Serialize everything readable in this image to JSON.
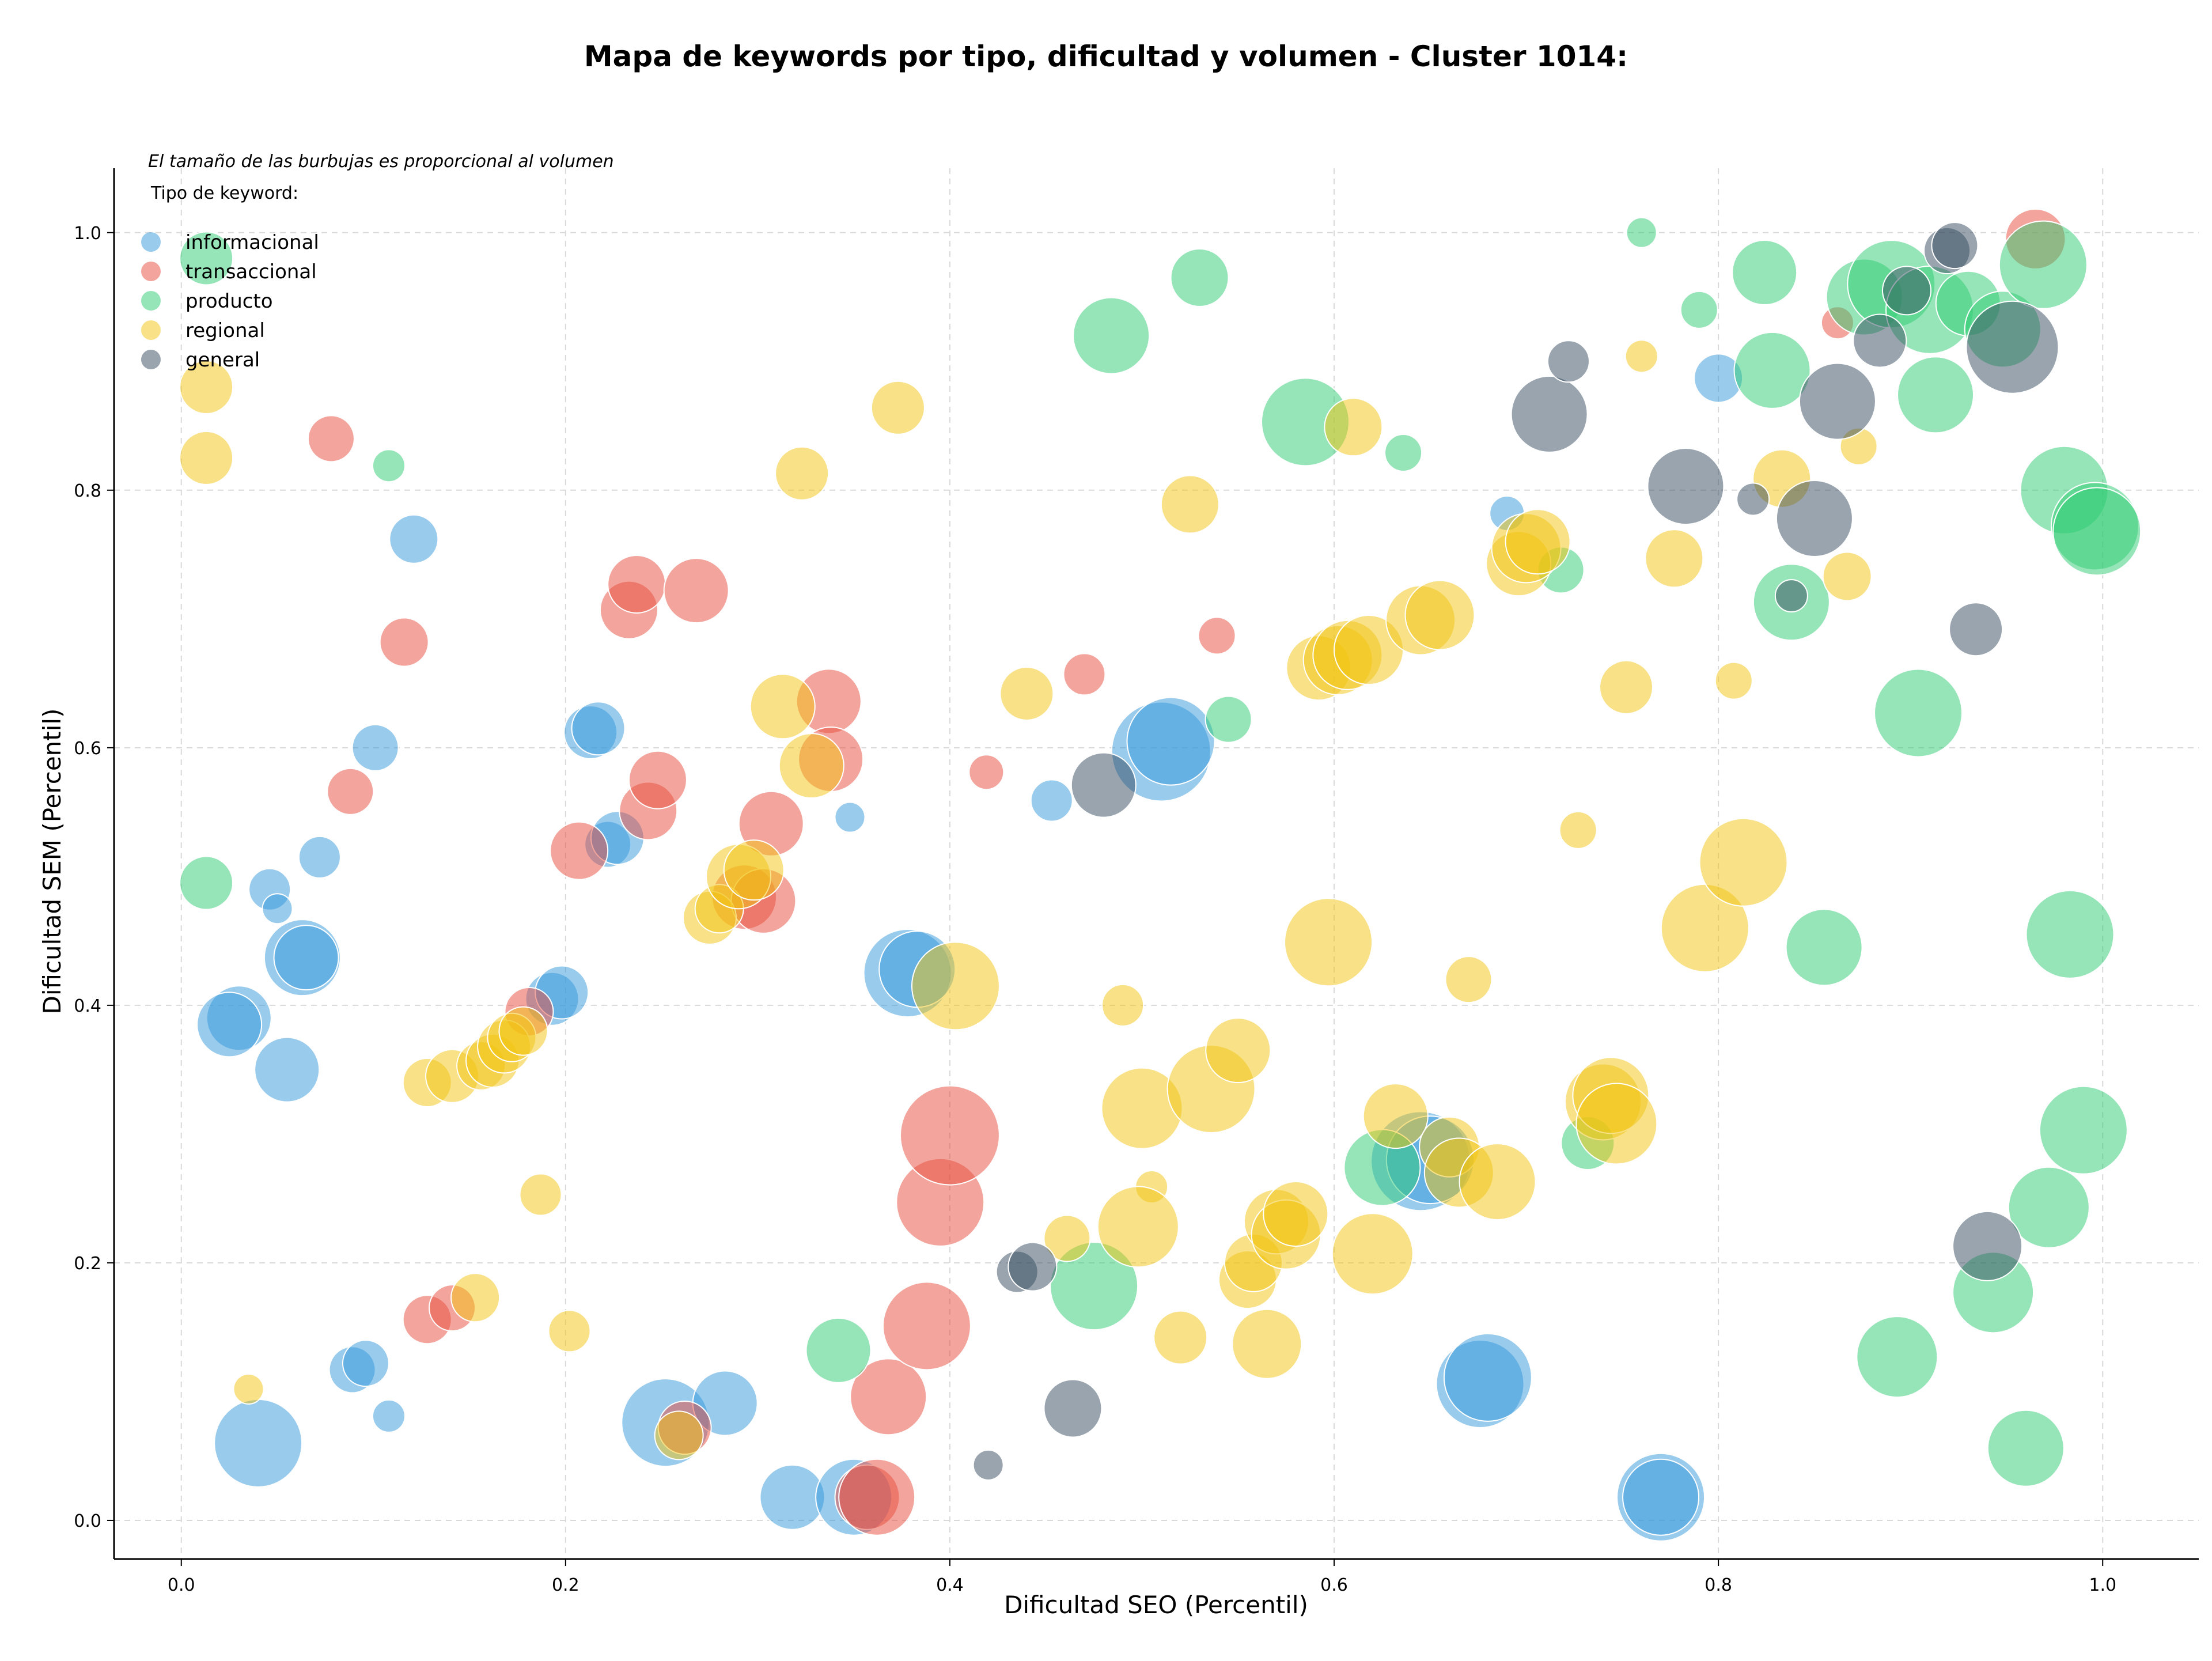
{
  "chart_data": {
    "type": "scatter",
    "title": "Mapa de keywords por tipo, dificultad y volumen - Cluster 1014:",
    "xlabel": "Dificultad SEO (Percentil)",
    "ylabel": "Dificultad SEM (Percentil)",
    "note": "El tamaño de las burbujas es proporcional al volumen",
    "legend_title": "Tipo de keyword:",
    "legend_position": "top-left",
    "grid": true,
    "xlim": [
      -0.035,
      1.05
    ],
    "ylim": [
      -0.03,
      1.05
    ],
    "xticks": [
      "0.0",
      "0.2",
      "0.4",
      "0.6",
      "0.8",
      "1.0"
    ],
    "yticks": [
      "0.0",
      "0.2",
      "0.4",
      "0.6",
      "0.8",
      "1.0"
    ],
    "series": [
      {
        "name": "informacional",
        "color": "#3498db",
        "points": [
          [
            0.04,
            0.06,
            3
          ],
          [
            0.03,
            0.39,
            2
          ],
          [
            0.025,
            0.385,
            2
          ],
          [
            0.055,
            0.35,
            2
          ],
          [
            0.063,
            0.437,
            2.5
          ],
          [
            0.065,
            0.437,
            2
          ],
          [
            0.046,
            0.49,
            1
          ],
          [
            0.05,
            0.475,
            0.5
          ],
          [
            0.072,
            0.515,
            1
          ],
          [
            0.101,
            0.6,
            1.2
          ],
          [
            0.121,
            0.762,
            1.3
          ],
          [
            0.089,
            0.117,
            1.2
          ],
          [
            0.096,
            0.122,
            1.2
          ],
          [
            0.108,
            0.081,
            0.6
          ],
          [
            0.193,
            0.405,
            1.5
          ],
          [
            0.198,
            0.41,
            1.5
          ],
          [
            0.213,
            0.612,
            1.5
          ],
          [
            0.217,
            0.615,
            1.5
          ],
          [
            0.222,
            0.525,
            1.2
          ],
          [
            0.227,
            0.53,
            1.5
          ],
          [
            0.252,
            0.076,
            3
          ],
          [
            0.283,
            0.091,
            2
          ],
          [
            0.318,
            0.018,
            2
          ],
          [
            0.35,
            0.018,
            2.5
          ],
          [
            0.348,
            0.546,
            0.5
          ],
          [
            0.378,
            0.425,
            3
          ],
          [
            0.383,
            0.428,
            2.5
          ],
          [
            0.453,
            0.559,
            1
          ],
          [
            0.51,
            0.597,
            3.5
          ],
          [
            0.515,
            0.605,
            3
          ],
          [
            0.645,
            0.279,
            3.5
          ],
          [
            0.65,
            0.28,
            3
          ],
          [
            0.676,
            0.106,
            3
          ],
          [
            0.68,
            0.111,
            3
          ],
          [
            0.69,
            0.782,
            0.7
          ],
          [
            0.8,
            0.887,
            1.3
          ],
          [
            0.77,
            0.018,
            3
          ],
          [
            0.77,
            0.018,
            2.5
          ]
        ]
      },
      {
        "name": "transaccional",
        "color": "#e74c3c",
        "points": [
          [
            0.078,
            0.84,
            1.2
          ],
          [
            0.088,
            0.566,
            1.2
          ],
          [
            0.116,
            0.682,
            1.3
          ],
          [
            0.128,
            0.156,
            1.3
          ],
          [
            0.141,
            0.165,
            1.2
          ],
          [
            0.181,
            0.395,
            1.3
          ],
          [
            0.207,
            0.52,
            1.7
          ],
          [
            0.233,
            0.707,
            1.7
          ],
          [
            0.237,
            0.727,
            1.7
          ],
          [
            0.243,
            0.551,
            1.7
          ],
          [
            0.248,
            0.575,
            1.7
          ],
          [
            0.268,
            0.722,
            2
          ],
          [
            0.262,
            0.072,
            1.5
          ],
          [
            0.293,
            0.484,
            2
          ],
          [
            0.303,
            0.481,
            2
          ],
          [
            0.307,
            0.541,
            2
          ],
          [
            0.337,
            0.636,
            2
          ],
          [
            0.338,
            0.591,
            2
          ],
          [
            0.357,
            0.018,
            2
          ],
          [
            0.362,
            0.018,
            2.5
          ],
          [
            0.368,
            0.096,
            2.5
          ],
          [
            0.388,
            0.151,
            3
          ],
          [
            0.395,
            0.247,
            3
          ],
          [
            0.4,
            0.299,
            3.5
          ],
          [
            0.419,
            0.581,
            0.7
          ],
          [
            0.47,
            0.657,
            1
          ],
          [
            0.539,
            0.687,
            0.8
          ],
          [
            0.862,
            0.93,
            0.6
          ],
          [
            0.965,
            0.995,
            1.8
          ]
        ]
      },
      {
        "name": "producto",
        "color": "#2ecc71",
        "points": [
          [
            0.013,
            0.495,
            1.5
          ],
          [
            0.013,
            0.98,
            1.5
          ],
          [
            0.108,
            0.819,
            0.6
          ],
          [
            0.342,
            0.132,
            2
          ],
          [
            0.475,
            0.182,
            3
          ],
          [
            0.484,
            0.92,
            2.5
          ],
          [
            0.53,
            0.965,
            1.7
          ],
          [
            0.545,
            0.622,
            1.2
          ],
          [
            0.585,
            0.853,
            3
          ],
          [
            0.636,
            0.829,
            0.8
          ],
          [
            0.625,
            0.274,
            2.5
          ],
          [
            0.718,
            0.738,
            1.2
          ],
          [
            0.732,
            0.293,
            1.5
          ],
          [
            0.76,
            1.0,
            0.5
          ],
          [
            0.79,
            0.94,
            0.8
          ],
          [
            0.824,
            0.969,
            2
          ],
          [
            0.828,
            0.893,
            2.5
          ],
          [
            0.838,
            0.713,
            2.5
          ],
          [
            0.855,
            0.445,
            2.5
          ],
          [
            0.876,
            0.95,
            2.5
          ],
          [
            0.89,
            0.96,
            3
          ],
          [
            0.893,
            0.127,
            2.7
          ],
          [
            0.904,
            0.627,
            3
          ],
          [
            0.91,
            0.94,
            3
          ],
          [
            0.913,
            0.874,
            2.5
          ],
          [
            0.93,
            0.945,
            2
          ],
          [
            0.943,
            0.177,
            2.7
          ],
          [
            0.948,
            0.925,
            2.5
          ],
          [
            0.96,
            0.056,
            2.5
          ],
          [
            0.969,
            0.975,
            3
          ],
          [
            0.972,
            0.243,
            2.7
          ],
          [
            0.98,
            0.8,
            3
          ],
          [
            0.983,
            0.455,
            3
          ],
          [
            0.99,
            0.303,
            3
          ],
          [
            0.996,
            0.772,
            3
          ],
          [
            0.997,
            0.768,
            3
          ]
        ]
      },
      {
        "name": "regional",
        "color": "#f1c40f",
        "points": [
          [
            0.013,
            0.88,
            1.5
          ],
          [
            0.013,
            0.825,
            1.5
          ],
          [
            0.035,
            0.102,
            0.5
          ],
          [
            0.128,
            0.34,
            1.3
          ],
          [
            0.141,
            0.345,
            1.5
          ],
          [
            0.153,
            0.173,
            1.3
          ],
          [
            0.156,
            0.353,
            1.3
          ],
          [
            0.162,
            0.357,
            1.5
          ],
          [
            0.168,
            0.368,
            1.5
          ],
          [
            0.172,
            0.375,
            1.3
          ],
          [
            0.178,
            0.38,
            1.3
          ],
          [
            0.187,
            0.253,
            1
          ],
          [
            0.202,
            0.147,
            1
          ],
          [
            0.259,
            0.066,
            1.3
          ],
          [
            0.275,
            0.468,
            1.5
          ],
          [
            0.28,
            0.475,
            1.3
          ],
          [
            0.29,
            0.5,
            2
          ],
          [
            0.298,
            0.505,
            1.8
          ],
          [
            0.313,
            0.632,
            2
          ],
          [
            0.323,
            0.813,
            1.5
          ],
          [
            0.328,
            0.586,
            2
          ],
          [
            0.373,
            0.864,
            1.5
          ],
          [
            0.403,
            0.415,
            3
          ],
          [
            0.44,
            0.642,
            1.5
          ],
          [
            0.461,
            0.219,
            1.2
          ],
          [
            0.49,
            0.4,
            1
          ],
          [
            0.5,
            0.32,
            2.7
          ],
          [
            0.505,
            0.259,
            0.6
          ],
          [
            0.498,
            0.228,
            2.7
          ],
          [
            0.52,
            0.142,
            1.5
          ],
          [
            0.525,
            0.789,
            1.7
          ],
          [
            0.536,
            0.335,
            3
          ],
          [
            0.55,
            0.365,
            2
          ],
          [
            0.555,
            0.187,
            1.7
          ],
          [
            0.558,
            0.2,
            1.7
          ],
          [
            0.565,
            0.137,
            2.2
          ],
          [
            0.57,
            0.232,
            2
          ],
          [
            0.575,
            0.222,
            2.2
          ],
          [
            0.58,
            0.238,
            2
          ],
          [
            0.597,
            0.449,
            3
          ],
          [
            0.592,
            0.662,
            2
          ],
          [
            0.602,
            0.668,
            2.2
          ],
          [
            0.607,
            0.672,
            2.2
          ],
          [
            0.61,
            0.849,
            1.7
          ],
          [
            0.618,
            0.676,
            2.2
          ],
          [
            0.62,
            0.207,
            2.7
          ],
          [
            0.632,
            0.314,
            2
          ],
          [
            0.645,
            0.699,
            2.2
          ],
          [
            0.655,
            0.703,
            2.2
          ],
          [
            0.66,
            0.29,
            1.8
          ],
          [
            0.665,
            0.27,
            2.2
          ],
          [
            0.67,
            0.42,
            1.2
          ],
          [
            0.685,
            0.263,
            2.5
          ],
          [
            0.696,
            0.743,
            2
          ],
          [
            0.7,
            0.755,
            2.2
          ],
          [
            0.706,
            0.76,
            2
          ],
          [
            0.727,
            0.536,
            0.8
          ],
          [
            0.74,
            0.325,
            2.5
          ],
          [
            0.744,
            0.33,
            2.5
          ],
          [
            0.747,
            0.308,
            2.7
          ],
          [
            0.752,
            0.647,
            1.5
          ],
          [
            0.76,
            0.904,
            0.6
          ],
          [
            0.777,
            0.747,
            1.7
          ],
          [
            0.793,
            0.46,
            3
          ],
          [
            0.808,
            0.652,
            0.8
          ],
          [
            0.813,
            0.511,
            3
          ],
          [
            0.833,
            0.809,
            1.7
          ],
          [
            0.867,
            0.733,
            1.3
          ],
          [
            0.873,
            0.834,
            0.8
          ]
        ]
      },
      {
        "name": "general",
        "color": "#34495e",
        "points": [
          [
            0.42,
            0.043,
            0.5
          ],
          [
            0.435,
            0.193,
            1
          ],
          [
            0.443,
            0.197,
            1.3
          ],
          [
            0.464,
            0.087,
            1.7
          ],
          [
            0.48,
            0.571,
            2
          ],
          [
            0.712,
            0.859,
            2.5
          ],
          [
            0.722,
            0.9,
            1
          ],
          [
            0.783,
            0.803,
            2.5
          ],
          [
            0.818,
            0.793,
            0.6
          ],
          [
            0.838,
            0.718,
            0.6
          ],
          [
            0.85,
            0.778,
            2.5
          ],
          [
            0.862,
            0.869,
            2.5
          ],
          [
            0.884,
            0.916,
            1.5
          ],
          [
            0.898,
            0.955,
            1.3
          ],
          [
            0.919,
            0.986,
            1.2
          ],
          [
            0.923,
            0.99,
            1.2
          ],
          [
            0.934,
            0.692,
            1.5
          ],
          [
            0.94,
            0.213,
            2.2
          ],
          [
            0.953,
            0.911,
            3.2
          ]
        ]
      }
    ]
  }
}
